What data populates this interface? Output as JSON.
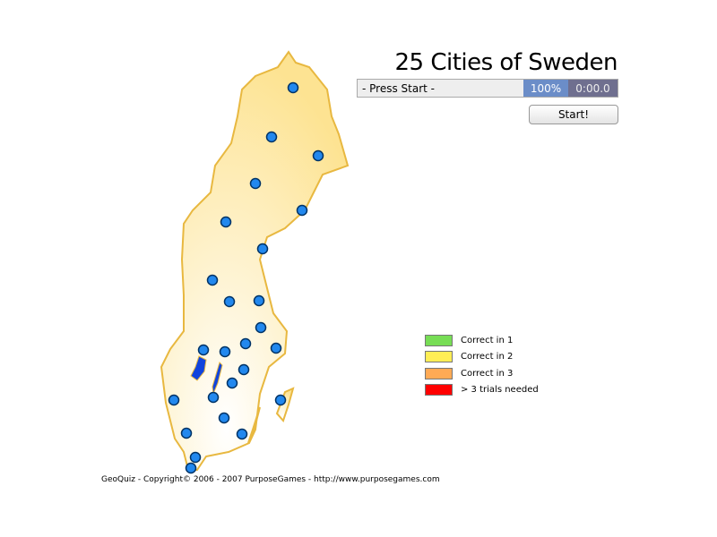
{
  "title": "25 Cities of Sweden",
  "status": "- Press Start -",
  "progress": "100%",
  "timer": "0:00.0",
  "start_label": "Start!",
  "legend": [
    {
      "label": "Correct in 1",
      "color": "#77dd55"
    },
    {
      "label": "Correct in 2",
      "color": "#ffee55"
    },
    {
      "label": "Correct in 3",
      "color": "#ffaa55"
    },
    {
      "label": "> 3 trials needed",
      "color": "#ff0000"
    }
  ],
  "colors": {
    "land": "#fde9a0",
    "border": "#e8b840",
    "city": "#2288ee",
    "lake": "#1144dd"
  },
  "city_count": 25,
  "footer": "GeoQuiz - Copyright© 2006 - 2007 PurposeGames - http://www.purposegames.com"
}
